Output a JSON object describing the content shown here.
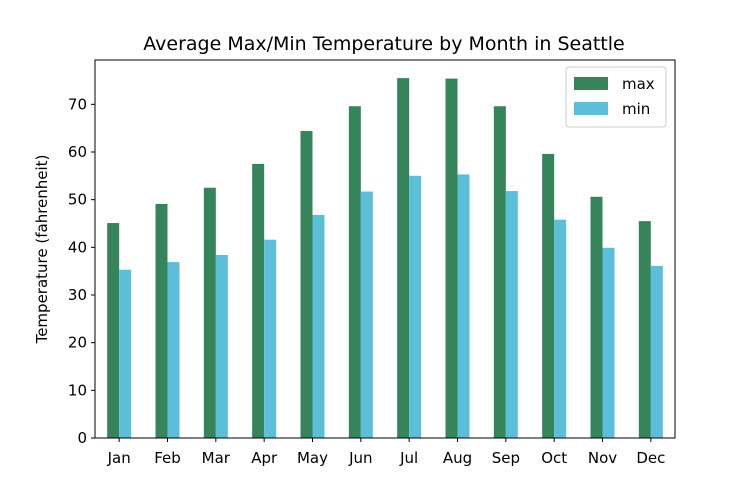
{
  "chart_data": {
    "type": "bar",
    "title": "Average Max/Min Temperature by Month in Seattle",
    "xlabel": "",
    "ylabel": "Temperature (fahrenheit)",
    "categories": [
      "Jan",
      "Feb",
      "Mar",
      "Apr",
      "May",
      "Jun",
      "Jul",
      "Aug",
      "Sep",
      "Oct",
      "Nov",
      "Dec"
    ],
    "series": [
      {
        "name": "max",
        "color": "#36845a",
        "values": [
          45.1,
          49.1,
          52.5,
          57.5,
          64.4,
          69.6,
          75.5,
          75.4,
          69.6,
          59.6,
          50.6,
          45.5
        ]
      },
      {
        "name": "min",
        "color": "#5bbfda",
        "values": [
          35.3,
          36.9,
          38.4,
          41.6,
          46.8,
          51.7,
          55.0,
          55.3,
          51.8,
          45.8,
          39.9,
          36.1
        ]
      }
    ],
    "ylim": [
      0,
      79.3
    ],
    "yticks": [
      0,
      10,
      20,
      30,
      40,
      50,
      60,
      70
    ],
    "grid": false,
    "legend_position": "top-right"
  }
}
